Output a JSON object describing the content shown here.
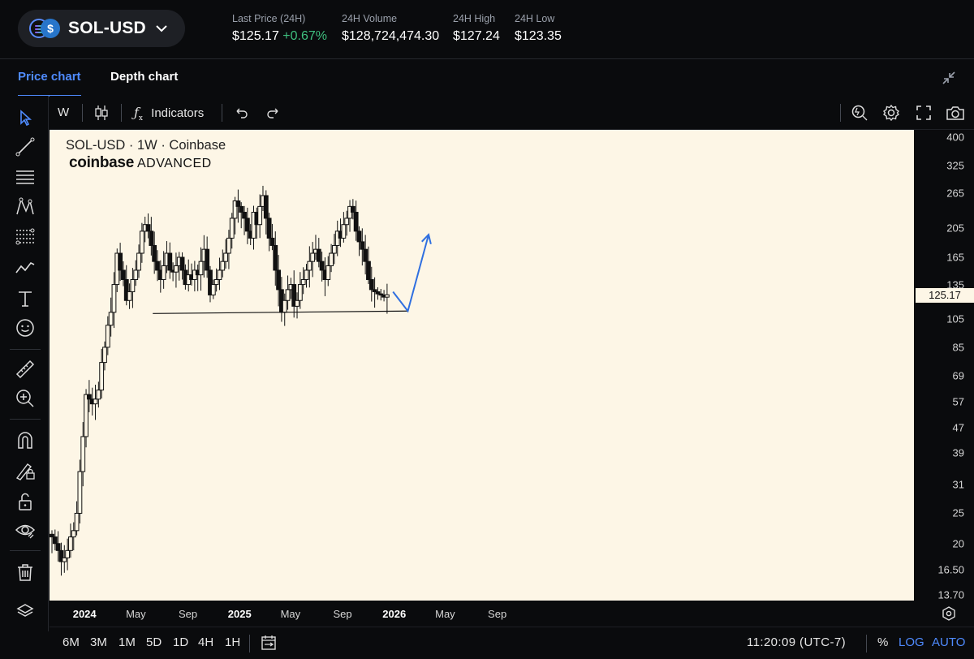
{
  "header": {
    "pair": "SOL-USD",
    "stats": [
      {
        "label": "Last Price (24H)",
        "value": "$125.17",
        "change": "+0.67%"
      },
      {
        "label": "24H Volume",
        "value": "$128,724,474.30"
      },
      {
        "label": "24H High",
        "value": "$127.24"
      },
      {
        "label": "24H Low",
        "value": "$123.35"
      }
    ]
  },
  "tabs": [
    {
      "label": "Price chart",
      "active": true
    },
    {
      "label": "Depth chart",
      "active": false
    }
  ],
  "chart_toolbar": {
    "interval": "W",
    "indicators_label": "Indicators"
  },
  "left_tools": [
    "cursor-icon",
    "trendline-icon",
    "horizontal-lines-icon",
    "pattern-icon",
    "fib-icon",
    "path-icon",
    "text-tool-icon",
    "emoji-icon",
    "ruler-icon",
    "zoom-in-icon",
    "magnet-icon",
    "lock-drawing-icon",
    "unlock-icon",
    "eye-icon",
    "trash-icon"
  ],
  "chart_data": {
    "type": "candlestick",
    "title": "SOL-USD · 1W · Coinbase",
    "watermark_logo": "coinbase",
    "watermark_suffix": "ADVANCED",
    "y_scale": "log",
    "ylim": [
      13.7,
      400
    ],
    "y_ticks": [
      "400",
      "325",
      "265",
      "205",
      "165",
      "135",
      "105",
      "85",
      "69",
      "57",
      "47",
      "39",
      "31",
      "25",
      "20",
      "16.50",
      "13.70"
    ],
    "last_price_label": "125.17",
    "last_price": 125.17,
    "x_ticks": [
      {
        "label": "2024",
        "bold": true
      },
      {
        "label": "May",
        "bold": false
      },
      {
        "label": "Sep",
        "bold": false
      },
      {
        "label": "2025",
        "bold": true
      },
      {
        "label": "May",
        "bold": false
      },
      {
        "label": "Sep",
        "bold": false
      },
      {
        "label": "2026",
        "bold": true
      },
      {
        "label": "May",
        "bold": false
      },
      {
        "label": "Sep",
        "bold": false
      }
    ],
    "date_range": [
      "2023-10-16",
      "2025-12-15"
    ],
    "close_path": [
      21,
      20,
      19,
      17.5,
      18,
      19,
      21,
      22,
      25,
      34,
      44,
      60,
      58,
      56,
      58,
      62,
      76,
      85,
      100,
      110,
      135,
      170,
      150,
      140,
      120,
      128,
      140,
      150,
      170,
      200,
      210,
      200,
      180,
      160,
      150,
      140,
      155,
      170,
      150,
      148,
      155,
      165,
      150,
      135,
      145,
      140,
      150,
      145,
      160,
      175,
      150,
      125,
      135,
      140,
      150,
      160,
      170,
      190,
      220,
      250,
      240,
      230,
      220,
      200,
      190,
      230,
      210,
      240,
      260,
      220,
      190,
      180,
      150,
      130,
      110,
      120,
      130,
      135,
      115,
      120,
      135,
      140,
      150,
      160,
      170,
      175,
      160,
      150,
      140,
      155,
      170,
      180,
      200,
      190,
      210,
      220,
      240,
      230,
      200,
      185,
      175,
      160,
      140,
      130,
      128,
      126,
      125,
      123,
      125.17
    ],
    "support_line": {
      "from": [
        "2024-06-10",
        109
      ],
      "to": [
        "2026-02-02",
        111
      ]
    },
    "projection_path": [
      [
        "2025-12-29",
        128
      ],
      [
        "2026-02-02",
        111
      ],
      [
        "2026-03-23",
        195
      ]
    ]
  },
  "bottom_bar": {
    "ranges": [
      "6M",
      "3M",
      "1M",
      "5D",
      "1D",
      "4H",
      "1H"
    ],
    "clock": "11:20:09 (UTC-7)",
    "percent_label": "%",
    "log_label": "LOG",
    "auto_label": "AUTO"
  },
  "colors": {
    "accent": "#4f8bff",
    "positive": "#3fbf7f",
    "chart_bg": "#fdf6e6",
    "candle": "#111111",
    "projection": "#2f6fe0"
  }
}
